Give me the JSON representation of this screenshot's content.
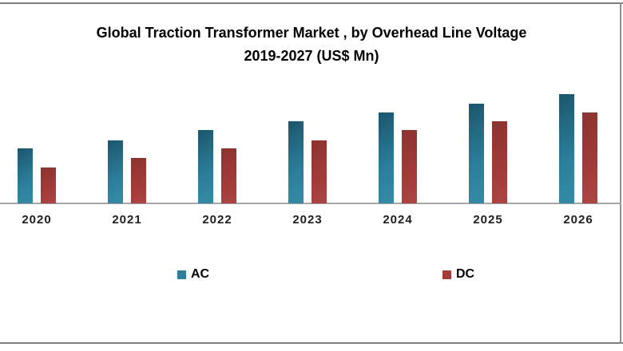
{
  "chart_data": {
    "type": "bar",
    "title_line1": "Global Traction Transformer Market , by Overhead Line Voltage",
    "title_line2": "2019-2027 (US$ Mn)",
    "categories": [
      "2020",
      "2021",
      "2022",
      "2023",
      "2024",
      "2025",
      "2026"
    ],
    "series": [
      {
        "name": "AC",
        "swatch": "#2E7F9A",
        "gradient": [
          "#1B566C",
          "#2C7E9A",
          "#358CA6"
        ],
        "values": [
          69,
          79,
          92,
          103,
          114,
          125,
          137
        ]
      },
      {
        "name": "DC",
        "swatch": "#A33C39",
        "gradient": [
          "#8C3330",
          "#A23B38",
          "#AC4543"
        ],
        "values": [
          45,
          57,
          69,
          79,
          92,
          103,
          114
        ]
      }
    ],
    "value_axis_visible": false,
    "gridlines": false,
    "value_unit": "relative bar height in px (chart shows no value axis or data labels)",
    "legend": {
      "position": "bottom",
      "entries": [
        "AC",
        "DC"
      ]
    },
    "colors": {
      "axis_line": "#A6A6A6",
      "frame": "#7E7E7E",
      "background": "#FFFFFF",
      "text": "#000000"
    }
  }
}
